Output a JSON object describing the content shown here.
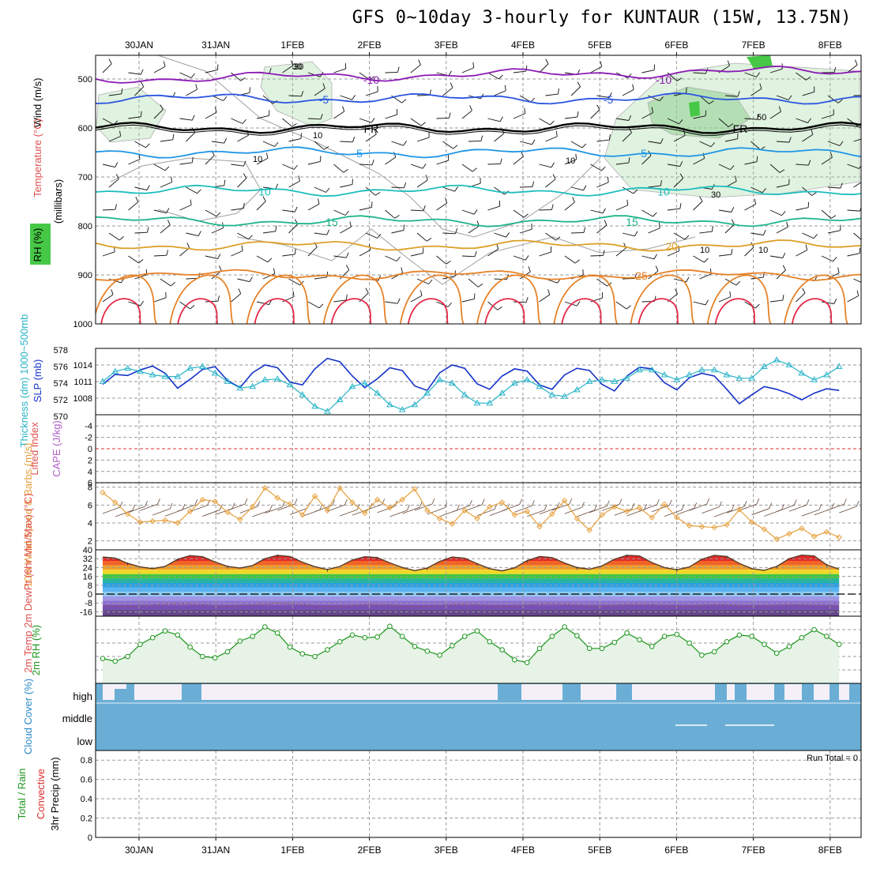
{
  "title": "GFS 0~10day 3-hourly for KUNTAUR (15W, 13.75N)",
  "colors": {
    "t_m10": "#8c1ab4",
    "t_m5": "#2a55e0",
    "t_fr": "#000000",
    "t_5": "#1e96e6",
    "t_10": "#1ebebe",
    "t_15": "#1eb48c",
    "t_20": "#dca028",
    "t_25": "#e68228",
    "t_30": "#e62846",
    "rh_fill": "#8fcf8f",
    "slp": "#1432c8",
    "thick": "#28b4c8",
    "wind10": "#e6a03c",
    "temp2m_line": "#5a3c28",
    "dew": "#8c5a64",
    "rh2m": "#1e961e",
    "rh2m_fill": "#e6f3e6",
    "cloud": "#6aaed6",
    "cloud_clear": "#f5f0f8",
    "li_zero": "#dc3232"
  },
  "chart_data": [
    {
      "type": "line",
      "panel": "upper-air",
      "ylabel_wind": "Wind (m/s)",
      "ylabel_temp": "Temperature (°C)",
      "ylabel_rh": "RH (%)",
      "ylabel_p": "(millibars)",
      "yticks": [
        "500",
        "600",
        "700",
        "800",
        "900",
        "1000"
      ],
      "ylim": [
        450,
        1000
      ],
      "dates_top": [
        "30JAN",
        "31JAN",
        "1FEB",
        "2FEB",
        "3FEB",
        "4FEB",
        "5FEB",
        "6FEB",
        "7FEB",
        "8FEB"
      ],
      "isotherms": [
        {
          "name": "-10",
          "level": 500,
          "labels": [
            "-10",
            "-10"
          ]
        },
        {
          "name": "-5",
          "level": 540,
          "labels": [
            "-5",
            "-5"
          ]
        },
        {
          "name": "FR",
          "level": 600,
          "labels": [
            "FR",
            "FR"
          ]
        },
        {
          "name": "5",
          "level": 650,
          "labels": [
            "5",
            "5"
          ]
        },
        {
          "name": "10",
          "level": 728,
          "labels": [
            "10",
            "10"
          ]
        },
        {
          "name": "15",
          "level": 790,
          "labels": [
            "15",
            "15"
          ]
        },
        {
          "name": "20",
          "level": 840,
          "labels": [
            "20"
          ]
        },
        {
          "name": "25",
          "level": 900,
          "labels": [
            "25"
          ]
        }
      ],
      "rh_labels": [
        "30",
        "10",
        "10",
        "10",
        "10",
        "50",
        "30",
        "10",
        "30"
      ]
    },
    {
      "type": "line",
      "panel": "slp-thickness",
      "ylabel_thick": "Thickness (dm) 1000~500mb",
      "ylabel_slp": "SLP (mb)",
      "thick_ticks": [
        "578",
        "576",
        "574",
        "572",
        "570"
      ],
      "slp_ticks": [
        "1014",
        "1011",
        "1008"
      ],
      "slp_ylim": [
        1005,
        1017
      ],
      "thick_ylim": [
        570,
        578
      ],
      "series": [
        {
          "name": "SLP",
          "axis": "slp",
          "values": [
            1010.5,
            1012.3,
            1012.1,
            1013.1,
            1013.8,
            1012.5,
            1009.8,
            1011.4,
            1013.2,
            1013.7,
            1011.2,
            1009.9,
            1012.6,
            1014.0,
            1013.5,
            1010.9,
            1010.4,
            1013.3,
            1015.2,
            1014.6,
            1012.0,
            1009.9,
            1011.5,
            1013.5,
            1013.0,
            1010.2,
            1009.4,
            1012.6,
            1014.0,
            1013.4,
            1010.6,
            1009.6,
            1012.0,
            1013.3,
            1012.9,
            1010.4,
            1009.6,
            1012.2,
            1013.4,
            1013.0,
            1010.5,
            1009.3,
            1012.0,
            1013.6,
            1013.3,
            1010.8,
            1009.5,
            1011.7,
            1012.5,
            1012.0,
            1009.6,
            1007.0,
            1008.6,
            1010.1,
            1009.6,
            1008.8,
            1007.7,
            1008.9,
            1009.7,
            1009.4
          ]
        },
        {
          "name": "Thickness",
          "axis": "thick",
          "values": [
            574.2,
            575.4,
            575.8,
            575.4,
            575.0,
            574.8,
            574.8,
            575.8,
            576.0,
            575.2,
            574.2,
            573.4,
            573.6,
            574.4,
            574.5,
            573.8,
            572.6,
            571.2,
            570.6,
            572.0,
            573.6,
            574.0,
            572.8,
            571.4,
            570.8,
            571.4,
            572.8,
            574.4,
            574.0,
            572.6,
            571.6,
            571.6,
            572.8,
            574.0,
            574.4,
            573.6,
            572.6,
            572.4,
            573.2,
            574.2,
            574.4,
            574.2,
            574.6,
            575.6,
            575.6,
            575.0,
            574.4,
            575.0,
            575.6,
            575.6,
            575.0,
            574.6,
            574.6,
            576.0,
            576.8,
            576.2,
            575.2,
            574.4,
            575.0,
            576.0
          ]
        }
      ]
    },
    {
      "type": "line",
      "panel": "stability",
      "ylabel_li": "Lifted Index",
      "ylabel_cape": "CAPE (J/kg)",
      "li_ticks": [
        "-4",
        "-2",
        "0",
        "2",
        "4",
        "6"
      ],
      "ylim": [
        6,
        -6
      ]
    },
    {
      "type": "line",
      "panel": "wind10m",
      "ylabel": "10m Wind Speed & Barbs (m/s)",
      "yticks": [
        "8",
        "6",
        "4",
        "2"
      ],
      "ylim": [
        1,
        8.5
      ],
      "series": [
        {
          "name": "10m Wind Speed",
          "values": [
            7.4,
            6.3,
            5.0,
            4.1,
            4.2,
            4.3,
            4.0,
            5.3,
            6.6,
            6.4,
            5.2,
            4.4,
            5.8,
            7.9,
            6.8,
            6.1,
            4.9,
            7.0,
            5.4,
            7.9,
            6.3,
            5.1,
            6.6,
            5.7,
            6.6,
            7.8,
            5.4,
            4.5,
            3.9,
            5.4,
            4.5,
            5.8,
            6.3,
            4.9,
            5.3,
            3.6,
            5.0,
            6.5,
            4.5,
            3.2,
            4.9,
            5.8,
            5.3,
            5.7,
            4.6,
            6.1,
            4.6,
            3.7,
            3.6,
            3.5,
            3.8,
            5.5,
            4.1,
            3.3,
            2.2,
            2.8,
            3.4,
            2.5,
            3.0,
            2.4
          ]
        }
      ]
    },
    {
      "type": "area",
      "panel": "temp2m",
      "ylabel": "2m Temp 2m DewPt (6hr Min/Max) (°C)",
      "yticks": [
        "40",
        "32",
        "24",
        "16",
        "8",
        "0",
        "-8",
        "-16"
      ],
      "ylim": [
        -20,
        40
      ],
      "series": [
        {
          "name": "2m Temp",
          "values": [
            33.5,
            32.5,
            27.8,
            24.6,
            23.0,
            25.0,
            31.5,
            34.8,
            33.8,
            29.0,
            25.1,
            23.5,
            25.8,
            32.0,
            35.0,
            34.0,
            28.8,
            24.8,
            22.2,
            25.0,
            30.8,
            33.8,
            33.0,
            28.2,
            24.1,
            21.2,
            23.5,
            29.5,
            33.5,
            32.5,
            27.5,
            23.0,
            21.0,
            23.8,
            30.2,
            34.0,
            33.0,
            28.1,
            24.0,
            22.5,
            25.5,
            31.5,
            35.1,
            34.5,
            28.5,
            24.0,
            22.0,
            24.5,
            31.5,
            35.0,
            34.0,
            27.8,
            23.0,
            21.5,
            25.0,
            32.0,
            35.2,
            34.5,
            26.5,
            22.5
          ]
        },
        {
          "name": "2m DewPt",
          "values": [
            -10.5,
            -10.8,
            -11.2,
            -10.6,
            -10.0,
            -9.2,
            -8.8,
            -9.0,
            -9.6,
            -10.4,
            -10.8,
            -10.5,
            -9.8,
            -9.0,
            -8.6,
            -8.8,
            -9.6,
            -10.4,
            -11.0,
            -10.8,
            -10.2,
            -9.6,
            -9.4,
            -9.8,
            -10.6,
            -11.2,
            -11.0,
            -10.2,
            -9.4,
            -9.0,
            -9.6,
            -10.4,
            -10.8,
            -10.6,
            -9.8,
            -9.0,
            -8.8,
            -9.2,
            -10.0,
            -10.6,
            -10.8,
            -10.2,
            -9.4,
            -9.2,
            -9.6,
            -10.4,
            -11.0,
            -10.8,
            -10.0,
            -9.6,
            -9.8,
            -10.4,
            -10.8,
            -10.6,
            -10.0,
            -9.6,
            -9.8,
            -10.2,
            -10.6,
            -10.4
          ]
        }
      ]
    },
    {
      "type": "line",
      "panel": "rh2m",
      "ylabel": "2m RH (%)",
      "ylim": [
        0,
        100
      ],
      "series": [
        {
          "name": "2m RH",
          "values": [
            37,
            33,
            40,
            58,
            68,
            78,
            72,
            54,
            40,
            38,
            47,
            63,
            70,
            84,
            75,
            54,
            44,
            40,
            50,
            62,
            72,
            68,
            69,
            85,
            70,
            55,
            48,
            42,
            56,
            70,
            78,
            62,
            50,
            35,
            31,
            52,
            70,
            84,
            71,
            52,
            52,
            61,
            75,
            65,
            55,
            70,
            73,
            60,
            42,
            47,
            62,
            72,
            70,
            58,
            45,
            55,
            68,
            80,
            70,
            58
          ]
        }
      ]
    },
    {
      "type": "area",
      "panel": "cloud",
      "ylabel": "Cloud Cover (%)",
      "ytick_labels": [
        "high",
        "middle",
        "low"
      ]
    },
    {
      "type": "bar",
      "panel": "precip",
      "ylabel_rain": "Total / Rain",
      "ylabel_conv": "Convective",
      "ylabel": "3hr Precip (mm)",
      "yticks": [
        "0.8",
        "0.6",
        "0.4",
        "0.2",
        "0"
      ],
      "ylim": [
        0,
        0.9
      ],
      "run_total": "Run Total = 0",
      "values": []
    }
  ],
  "dates_bottom": [
    "30JAN",
    "31JAN",
    "1FEB",
    "2FEB",
    "3FEB",
    "4FEB",
    "5FEB",
    "6FEB",
    "7FEB",
    "8FEB"
  ]
}
